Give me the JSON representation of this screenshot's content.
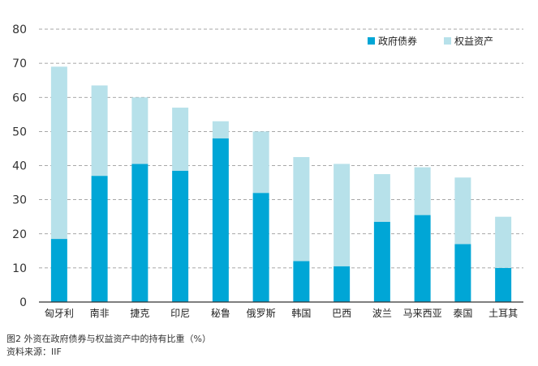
{
  "chart_data": {
    "type": "bar",
    "stacked": true,
    "categories": [
      "匈牙利",
      "南非",
      "捷克",
      "印尼",
      "秘鲁",
      "俄罗斯",
      "韩国",
      "巴西",
      "波兰",
      "马来西亚",
      "泰国",
      "土耳其"
    ],
    "series": [
      {
        "name": "政府债券",
        "color": "#00a6d6",
        "values": [
          18.5,
          37,
          40.5,
          38.5,
          48,
          32,
          12,
          10.5,
          23.5,
          25.5,
          17,
          10
        ]
      },
      {
        "name": "权益资产",
        "color": "#b7e1ea",
        "values": [
          50.5,
          26.5,
          19.5,
          18.5,
          5,
          18,
          30.5,
          30,
          14,
          14,
          19.5,
          15
        ]
      }
    ],
    "ylim": [
      0,
      80
    ],
    "yticks": [
      "0",
      "10",
      "20",
      "30",
      "40",
      "50",
      "60",
      "70",
      "80"
    ],
    "grid": "dashed-horizontal",
    "legend_position": "top-right"
  },
  "caption": {
    "title": "图2  外资在政府债券与权益资产中的持有比重（%）",
    "source": "资料来源：IIF"
  }
}
